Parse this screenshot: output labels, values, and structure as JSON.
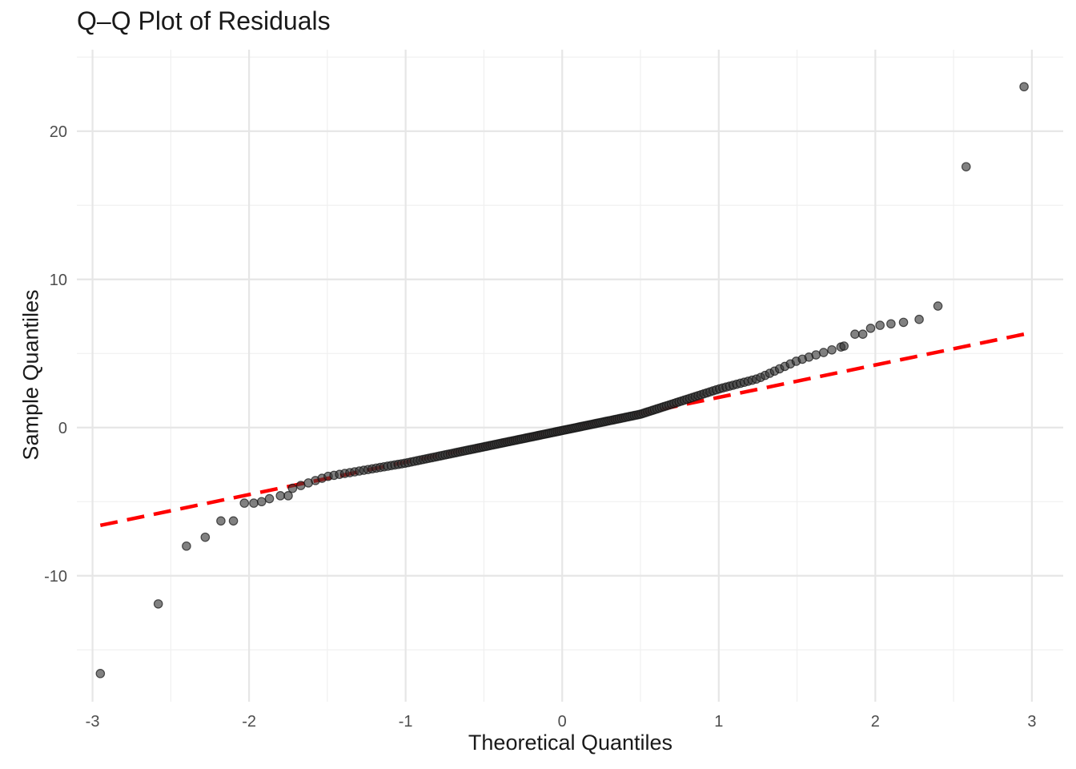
{
  "chart_data": {
    "type": "scatter",
    "title": "Q–Q Plot of Residuals",
    "xlabel": "Theoretical Quantiles",
    "ylabel": "Sample Quantiles",
    "xlim": [
      -3.1,
      3.2
    ],
    "ylim": [
      -18.5,
      25.5
    ],
    "x_ticks": [
      -3,
      -2,
      -1,
      0,
      1,
      2,
      3
    ],
    "x_tick_labels": [
      "-3",
      "-2",
      "-1",
      "0",
      "1",
      "2",
      "3"
    ],
    "y_ticks": [
      -10,
      0,
      10,
      20
    ],
    "y_tick_labels": [
      "-10",
      "0",
      "10",
      "20"
    ],
    "grid": true,
    "legend": "none",
    "point_color": "#333333",
    "line_color": "#ff0000",
    "n_points": 200,
    "tail_points": [
      {
        "x": -2.95,
        "y": -16.6
      },
      {
        "x": -2.58,
        "y": -11.9
      },
      {
        "x": -2.4,
        "y": -8.0
      },
      {
        "x": -2.28,
        "y": -7.4
      },
      {
        "x": -2.18,
        "y": -6.3
      },
      {
        "x": -2.1,
        "y": -6.3
      },
      {
        "x": -2.03,
        "y": -5.1
      },
      {
        "x": -1.97,
        "y": -5.1
      },
      {
        "x": -1.92,
        "y": -5.0
      },
      {
        "x": -1.87,
        "y": -4.8
      },
      {
        "x": -1.8,
        "y": -4.6
      },
      {
        "x": -1.75,
        "y": -4.6
      },
      {
        "x": 1.8,
        "y": 5.5
      },
      {
        "x": 1.87,
        "y": 6.3
      },
      {
        "x": 1.92,
        "y": 6.3
      },
      {
        "x": 1.97,
        "y": 6.7
      },
      {
        "x": 2.03,
        "y": 6.9
      },
      {
        "x": 2.1,
        "y": 7.0
      },
      {
        "x": 2.18,
        "y": 7.1
      },
      {
        "x": 2.28,
        "y": 7.3
      },
      {
        "x": 2.4,
        "y": 8.2
      },
      {
        "x": 2.58,
        "y": 17.6
      },
      {
        "x": 2.95,
        "y": 23.0
      }
    ],
    "reference_line": {
      "x": [
        -2.95,
        2.95
      ],
      "y": [
        -6.6,
        6.3
      ],
      "style": "dashed"
    }
  }
}
